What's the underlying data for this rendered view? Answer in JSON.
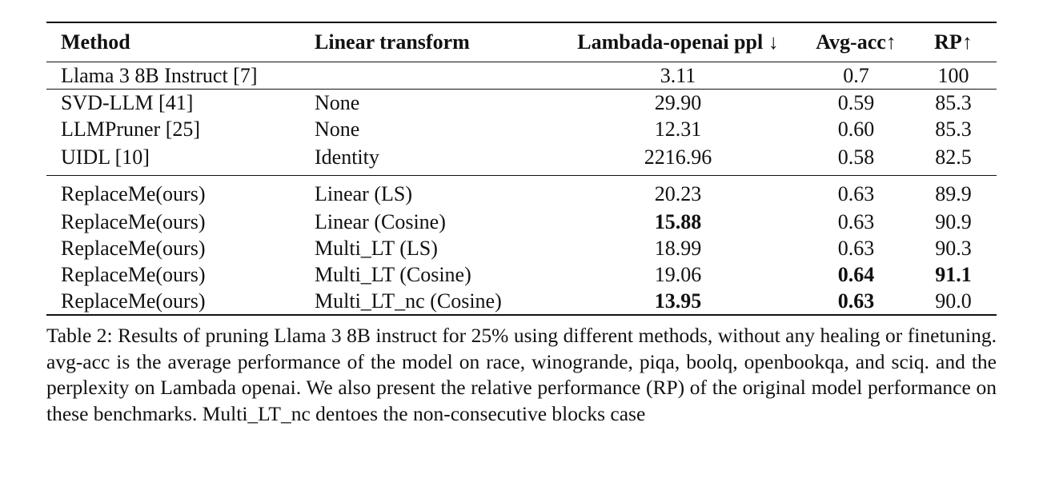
{
  "table": {
    "headers": {
      "method": "Method",
      "linear_transform": "Linear transform",
      "ppl": "Lambada-openai ppl ↓",
      "avg_acc": "Avg-acc↑",
      "rp": "RP↑"
    },
    "baseline": {
      "method": "Llama 3 8B Instruct [7]",
      "linear_transform": "",
      "ppl": "3.11",
      "avg_acc": "0.7",
      "rp": "100"
    },
    "competitors": [
      {
        "method": "SVD-LLM [41]",
        "linear_transform": "None",
        "ppl": "29.90",
        "avg_acc": "0.59",
        "rp": "85.3"
      },
      {
        "method": "LLMPruner [25]",
        "linear_transform": "None",
        "ppl": "12.31",
        "avg_acc": "0.60",
        "rp": "85.3"
      },
      {
        "method": "UIDL [10]",
        "linear_transform": "Identity",
        "ppl": "2216.96",
        "avg_acc": "0.58",
        "rp": "82.5"
      }
    ],
    "ours": [
      {
        "method": "ReplaceMe(ours)",
        "linear_transform": "Linear (LS)",
        "ppl": "20.23",
        "avg_acc": "0.63",
        "rp": "89.9"
      },
      {
        "method": "ReplaceMe(ours)",
        "linear_transform": "Linear (Cosine)",
        "ppl": "15.88",
        "avg_acc": "0.63",
        "rp": "90.9"
      },
      {
        "method": "ReplaceMe(ours)",
        "linear_transform": "Multi_LT (LS)",
        "ppl": "18.99",
        "avg_acc": "0.63",
        "rp": "90.3"
      },
      {
        "method": "ReplaceMe(ours)",
        "linear_transform": "Multi_LT (Cosine)",
        "ppl": "19.06",
        "avg_acc": "0.64",
        "rp": "91.1"
      },
      {
        "method": "ReplaceMe(ours)",
        "linear_transform": "Multi_LT_nc (Cosine)",
        "ppl": "13.95",
        "avg_acc": "0.63",
        "rp": "90.0"
      }
    ]
  },
  "caption": "Table 2: Results of pruning Llama 3 8B instruct for 25% using different methods, without any healing or finetuning. avg-acc is the average performance of the model on race, winogrande, piqa, boolq, openbookqa, and sciq. and the perplexity on Lambada openai. We also present the relative performance (RP) of the original model performance on these benchmarks. Multi_LT_nc dentoes the non-consecutive blocks case"
}
